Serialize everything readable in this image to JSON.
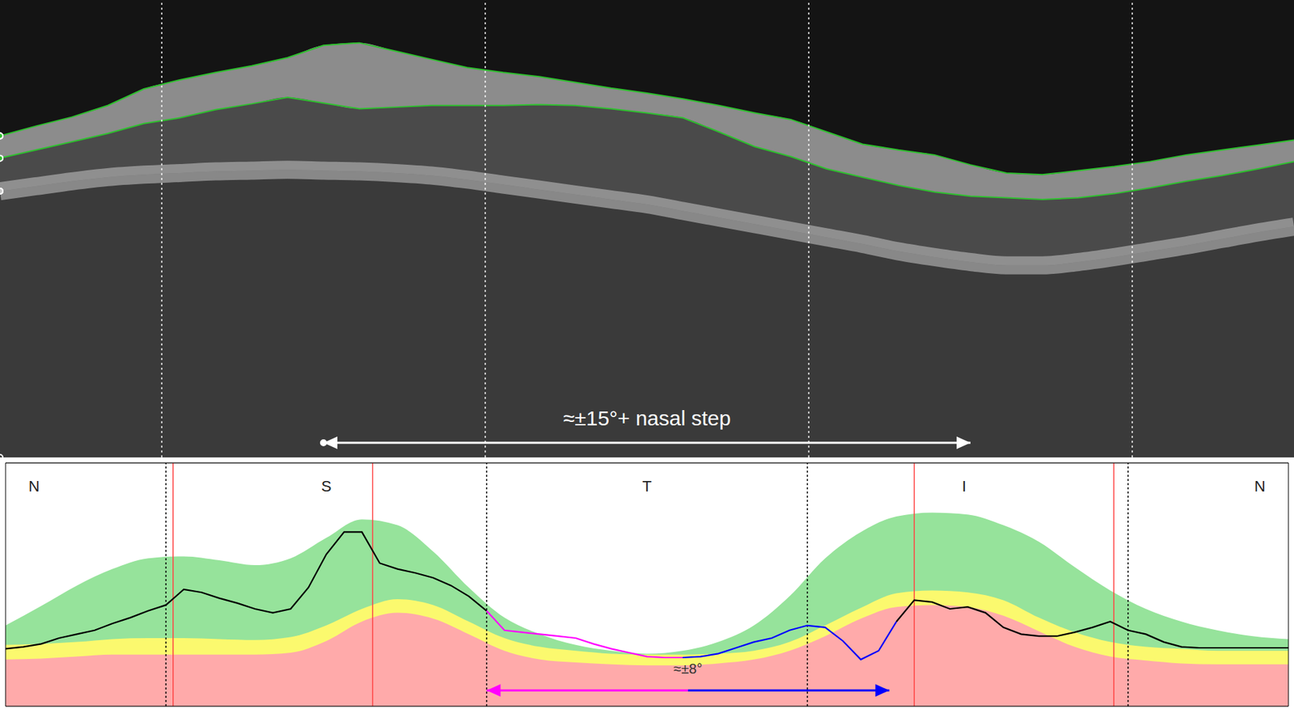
{
  "chart_data": [
    {
      "type": "line",
      "tick_labels": false,
      "xlim": [
        0,
        360
      ],
      "ylim": [
        0,
        555
      ],
      "x": [
        0,
        10,
        20,
        30,
        40,
        50,
        60,
        70,
        80,
        90,
        100,
        110,
        120,
        130,
        140,
        150,
        160,
        170,
        180,
        190,
        200,
        210,
        220,
        230,
        240,
        250,
        260,
        270,
        280,
        290,
        300,
        310,
        320,
        330,
        340,
        350,
        360
      ],
      "series": [
        {
          "color": "#2fbf2f",
          "values": [
            165,
            153,
            142,
            128,
            108,
            97,
            88,
            80,
            70,
            55,
            52,
            62,
            72,
            82,
            88,
            93,
            100,
            107,
            113,
            120,
            128,
            137,
            145,
            160,
            175,
            182,
            188,
            200,
            210,
            212,
            207,
            202,
            196,
            188,
            182,
            176,
            170
          ]
        },
        {
          "color": "#2fbf2f",
          "values": [
            192,
            182,
            172,
            162,
            150,
            143,
            133,
            126,
            118,
            125,
            132,
            130,
            128,
            128,
            128,
            127,
            128,
            132,
            137,
            143,
            160,
            178,
            190,
            205,
            215,
            225,
            233,
            238,
            240,
            242,
            240,
            235,
            228,
            220,
            213,
            205,
            196
          ]
        },
        {
          "color": "#c8c8c8",
          "values": [
            232,
            226,
            220,
            215,
            212,
            210,
            208,
            207,
            206,
            207,
            208,
            210,
            213,
            218,
            224,
            230,
            236,
            242,
            248,
            256,
            264,
            272,
            280,
            288,
            296,
            305,
            312,
            318,
            322,
            322,
            318,
            312,
            305,
            298,
            290,
            282,
            275
          ]
        }
      ],
      "boundaries": [
        45,
        135,
        225,
        315
      ],
      "annotations": [
        {
          "text": "≈±15°+ nasal step",
          "from": 90,
          "to": 270,
          "color": "#ffffff"
        }
      ]
    },
    {
      "type": "line",
      "tick_labels": false,
      "grid": true,
      "xlim": [
        0,
        360
      ],
      "ylim": [
        0,
        250
      ],
      "yticks": [
        0,
        50,
        100,
        150,
        200,
        250
      ],
      "bands": [
        {
          "color": "#96e39b",
          "x": [
            0,
            10,
            20,
            30,
            40,
            50,
            60,
            70,
            80,
            90,
            100,
            110,
            120,
            130,
            140,
            150,
            160,
            170,
            180,
            190,
            200,
            210,
            220,
            230,
            240,
            250,
            260,
            270,
            280,
            290,
            300,
            310,
            320,
            330,
            340,
            350,
            360
          ],
          "values": [
            83,
            103,
            124,
            141,
            152,
            154,
            150,
            145,
            152,
            173,
            192,
            186,
            159,
            122,
            91,
            74,
            63,
            57,
            54,
            57,
            66,
            83,
            113,
            152,
            179,
            195,
            199,
            197,
            186,
            169,
            143,
            119,
            100,
            87,
            78,
            72,
            69
          ]
        },
        {
          "color": "#fbf96e",
          "x": [
            0,
            10,
            20,
            30,
            40,
            50,
            60,
            70,
            80,
            90,
            100,
            110,
            120,
            130,
            140,
            150,
            160,
            170,
            180,
            190,
            200,
            210,
            220,
            230,
            240,
            250,
            260,
            270,
            280,
            290,
            300,
            310,
            320,
            330,
            340,
            350,
            360
          ],
          "values": [
            63,
            64,
            66,
            69,
            70,
            70,
            69,
            68,
            71,
            83,
            100,
            110,
            104,
            87,
            70,
            61,
            57,
            54,
            53,
            53,
            54,
            57,
            66,
            83,
            101,
            116,
            119,
            117,
            109,
            91,
            76,
            66,
            61,
            59,
            57,
            57,
            57
          ]
        },
        {
          "color": "#ffaaaa",
          "x": [
            0,
            10,
            20,
            30,
            40,
            50,
            60,
            70,
            80,
            90,
            100,
            110,
            120,
            130,
            140,
            150,
            160,
            170,
            180,
            190,
            200,
            210,
            220,
            230,
            240,
            250,
            260,
            270,
            280,
            290,
            300,
            310,
            320,
            330,
            340,
            350,
            360
          ],
          "values": [
            48,
            49,
            51,
            53,
            53,
            53,
            53,
            53,
            55,
            67,
            87,
            96,
            90,
            74,
            57,
            48,
            45,
            43,
            42,
            42,
            44,
            48,
            57,
            72,
            90,
            102,
            104,
            102,
            93,
            77,
            61,
            51,
            47,
            44,
            43,
            43,
            43
          ]
        }
      ],
      "series": [
        {
          "color": "#000000",
          "x": [
            0,
            5,
            10,
            15,
            20,
            25,
            30,
            35,
            40,
            45,
            50,
            55,
            60,
            65,
            70,
            75,
            80,
            85,
            90,
            95,
            100,
            105,
            110,
            115,
            120,
            125,
            130,
            135
          ],
          "values": [
            59,
            61,
            64,
            70,
            74,
            78,
            85,
            91,
            98,
            104,
            120,
            117,
            111,
            106,
            100,
            96,
            100,
            122,
            156,
            179,
            179,
            147,
            141,
            137,
            132,
            124,
            113,
            98
          ]
        },
        {
          "color": "#ff00ff",
          "x": [
            135,
            140,
            145,
            150,
            155,
            160,
            165,
            170,
            175,
            180,
            185,
            190
          ],
          "values": [
            98,
            78,
            76,
            74,
            72,
            70,
            64,
            59,
            55,
            51,
            50,
            50
          ]
        },
        {
          "color": "#0000ff",
          "x": [
            190,
            195,
            200,
            205,
            210,
            215,
            220,
            225,
            230,
            235,
            240,
            245,
            250
          ],
          "values": [
            50,
            51,
            54,
            60,
            66,
            70,
            78,
            83,
            81,
            67,
            48,
            57,
            87
          ]
        },
        {
          "color": "#000000",
          "x": [
            250,
            255,
            260,
            265,
            270,
            275,
            280,
            285,
            290,
            295,
            300,
            305,
            310,
            315,
            320,
            325,
            330,
            335,
            340,
            345,
            350,
            355,
            360
          ],
          "values": [
            87,
            109,
            107,
            100,
            102,
            96,
            81,
            74,
            72,
            72,
            76,
            81,
            87,
            78,
            74,
            66,
            61,
            60,
            60,
            60,
            60,
            60,
            60
          ]
        }
      ],
      "boundaries": [
        45,
        135,
        225,
        315
      ],
      "red_lines": {
        "color": "#ff4444",
        "x": [
          47,
          103,
          255,
          311
        ]
      },
      "sector_labels": [
        {
          "text": "N",
          "x": 8
        },
        {
          "text": "S",
          "x": 90
        },
        {
          "text": "T",
          "x": 180
        },
        {
          "text": "I",
          "x": 269
        },
        {
          "text": "N",
          "x": 352
        }
      ],
      "annotations": [
        {
          "text": "≈±8°",
          "from": 135,
          "split": 191.5,
          "to": 248,
          "colors": [
            "#ff00ff",
            "#0000ff"
          ]
        }
      ]
    }
  ]
}
